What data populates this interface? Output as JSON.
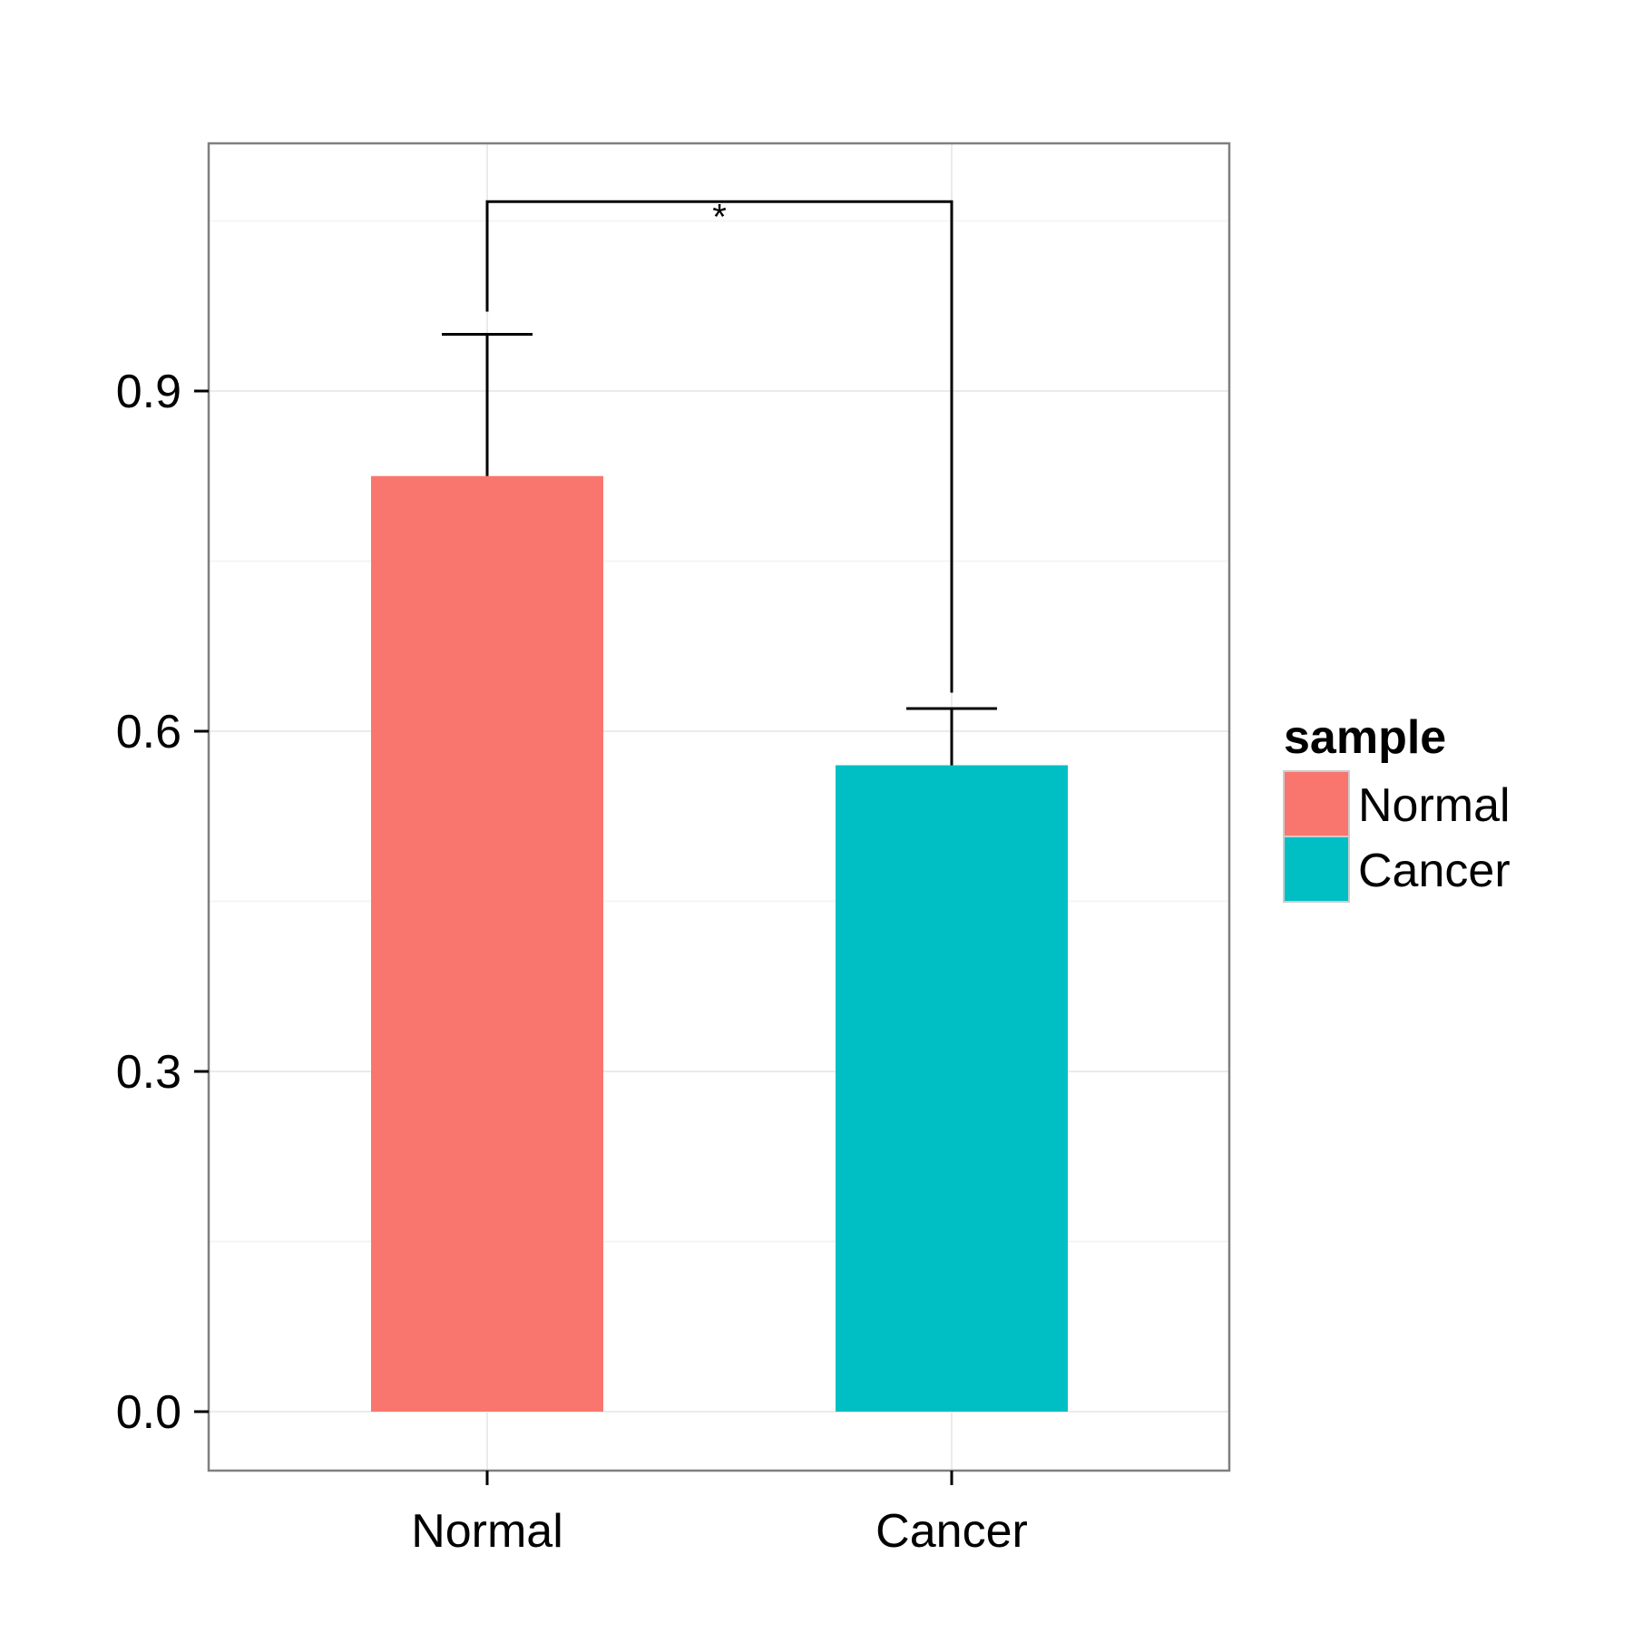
{
  "chart_data": {
    "type": "bar",
    "title": "",
    "xlabel": "",
    "ylabel": "",
    "categories": [
      "Normal",
      "Cancer"
    ],
    "values": [
      0.825,
      0.57
    ],
    "error_upper": [
      0.95,
      0.62
    ],
    "colors": [
      "#F8766D",
      "#00BFC4"
    ],
    "ylim": [
      -0.052,
      1.12
    ],
    "y_ticks": [
      0.0,
      0.3,
      0.6,
      0.9
    ],
    "y_tick_labels": [
      "0.0",
      "0.3",
      "0.6",
      "0.9"
    ],
    "grid": true,
    "legend": {
      "title": "sample",
      "position": "right",
      "entries": [
        {
          "label": "Normal",
          "color": "#F8766D"
        },
        {
          "label": "Cancer",
          "color": "#00BFC4"
        }
      ]
    },
    "significance": {
      "label": "*",
      "between": [
        "Normal",
        "Cancer"
      ],
      "bracket_y": 1.067,
      "left_end": 0.97,
      "right_end": 0.634
    }
  }
}
